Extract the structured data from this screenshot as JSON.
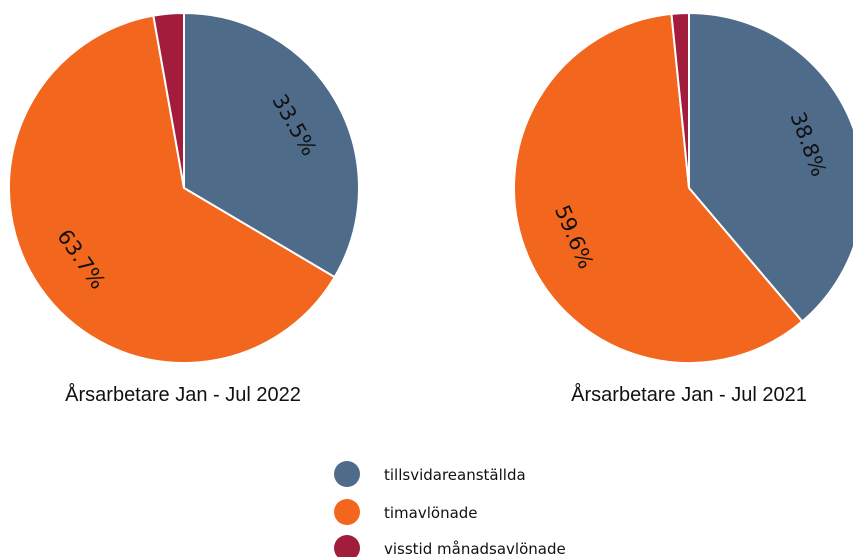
{
  "chart_data": [
    {
      "type": "pie",
      "caption": "Årsarbetare Jan - Jul 2022",
      "slices": [
        {
          "category": "tillsvidareanställda",
          "value": 33.5,
          "label": "33.5%"
        },
        {
          "category": "timavlönade",
          "value": 63.7,
          "label": "63.7%"
        },
        {
          "category": "visstid månadsavlönade",
          "value": 2.8,
          "label": ""
        }
      ]
    },
    {
      "type": "pie",
      "caption": "Årsarbetare Jan - Jul 2021",
      "slices": [
        {
          "category": "tillsvidareanställda",
          "value": 38.8,
          "label": "38.8%"
        },
        {
          "category": "timavlönade",
          "value": 59.6,
          "label": "59.6%"
        },
        {
          "category": "visstid månadsavlönade",
          "value": 1.6,
          "label": ""
        }
      ]
    }
  ],
  "legend": {
    "position": "bottom-center",
    "items": [
      {
        "label": "tillsvidareanställda",
        "color": "#4f6b8a"
      },
      {
        "label": "timavlönade",
        "color": "#f2661d"
      },
      {
        "label": "visstid månadsavlönade",
        "color": "#a21d3c"
      }
    ]
  }
}
